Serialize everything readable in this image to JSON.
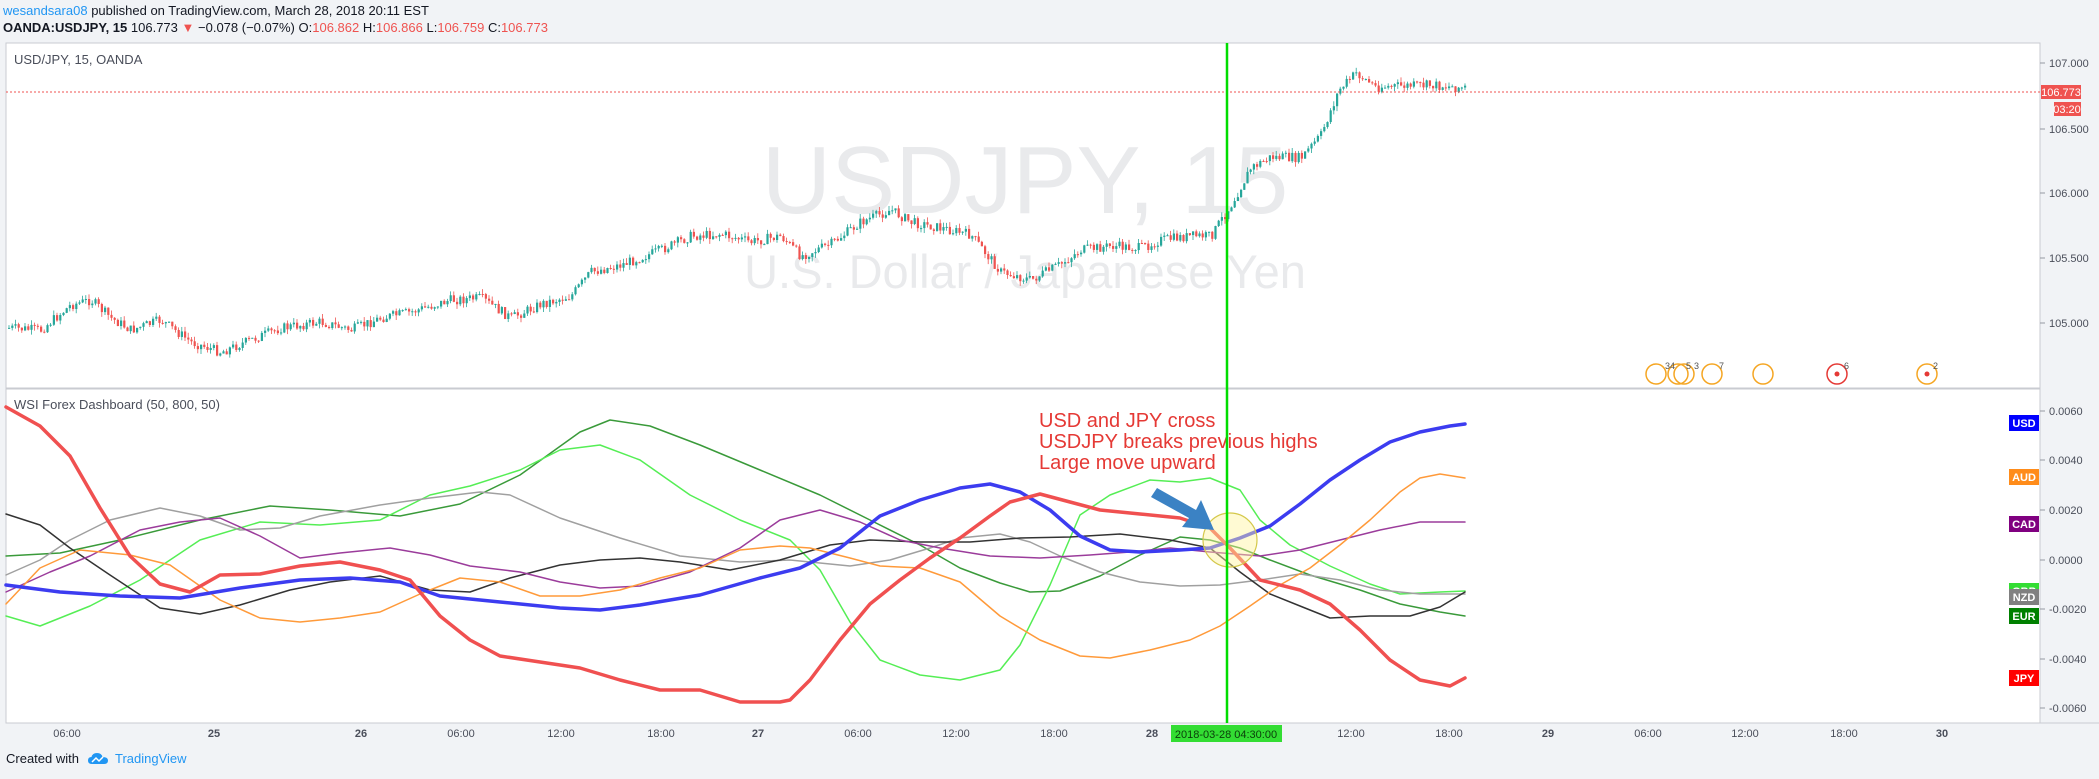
{
  "header": {
    "publisher": "wesandsara08",
    "published_text": "published on TradingView.com, March 28, 2018 20:11 EST",
    "symbol": "OANDA:USDJPY, 15",
    "last": "106.773",
    "change": "−0.078 (−0.07%)",
    "o_label": "O:",
    "o_value": "106.862",
    "h_label": "H:",
    "h_value": "106.866",
    "l_label": "L:",
    "l_value": "106.759",
    "c_label": "C:",
    "c_value": "106.773"
  },
  "main_pane": {
    "legend": "USD/JPY, 15, OANDA",
    "watermark_symbol": "USDJPY, 15",
    "watermark_name": "U.S. Dollar / Japanese Yen",
    "price_ticks": [
      "107.000",
      "106.500",
      "106.000",
      "105.500",
      "105.000"
    ],
    "last_price_badge": "106.773",
    "countdown_badge": "03:20",
    "event_counts": [
      "34",
      "5",
      "3",
      "7",
      "6",
      "2"
    ]
  },
  "indicator_pane": {
    "legend": "WSI Forex Dashboard (50, 800, 50)",
    "annotation": [
      "USD and JPY cross",
      "USDJPY breaks previous highs",
      "Large move upward"
    ],
    "y_ticks": [
      "0.0060",
      "0.0040",
      "0.0020",
      "0.0000",
      "-0.0020",
      "-0.0040",
      "-0.0060"
    ],
    "currency_labels": [
      {
        "name": "USD",
        "color": "#0000ff"
      },
      {
        "name": "AUD",
        "color": "#ff8c1a"
      },
      {
        "name": "CAD",
        "color": "#800080"
      },
      {
        "name": "GBP",
        "color": "#33dd33"
      },
      {
        "name": "NZD",
        "color": "#808080"
      },
      {
        "name": "EUR",
        "color": "#008000"
      },
      {
        "name": "JPY",
        "color": "#ff0000"
      }
    ]
  },
  "time_axis": {
    "labels": [
      "06:00",
      "25",
      "26",
      "06:00",
      "12:00",
      "18:00",
      "27",
      "06:00",
      "12:00",
      "18:00",
      "28",
      "12:00",
      "18:00",
      "29",
      "06:00",
      "12:00",
      "18:00",
      "30"
    ],
    "crosshair_label": "2018-03-28 04:30:00"
  },
  "footer": {
    "created_with": "Created with",
    "brand": "TradingView"
  },
  "colors": {
    "up": "#26a69a",
    "down": "#ef5350",
    "crosshair": "#00dd00",
    "usd_line": "#3c3cf0",
    "jpy_line": "#f05050"
  }
}
